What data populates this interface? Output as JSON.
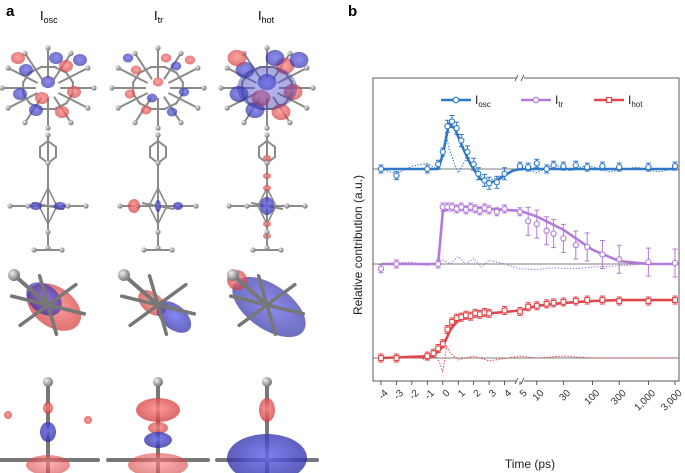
{
  "panel_a": {
    "letter": "a",
    "columns": [
      {
        "base": "I",
        "sub": "osc"
      },
      {
        "base": "I",
        "sub": "tr"
      },
      {
        "base": "I",
        "sub": "hot"
      }
    ]
  },
  "panel_b": {
    "letter": "b"
  },
  "colors": {
    "osc": "#2f78c8",
    "tr": "#b27ad9",
    "hot": "#e0474c",
    "blue_density": "#4a4ad0",
    "red_density": "#e85a5a",
    "atom": "#9a9a9a"
  },
  "chart_data": {
    "type": "line",
    "ylabel": "Relative contribution (a.u.)",
    "xlabel": "Time (ps)",
    "x_scale": "piecewise: linear -4 to 5 ps, then log 5 to 3,000 ps, with axis break after 5",
    "xlim": [
      -4,
      3000
    ],
    "x_ticks": [
      "-4",
      "-3",
      "-2",
      "-1",
      "0",
      "1",
      "2",
      "3",
      "4",
      "5",
      "10",
      "30",
      "100",
      "300",
      "1,000",
      "3,000"
    ],
    "grid": false,
    "legend_position": "top",
    "series": [
      {
        "name_base": "I",
        "name_sub": "osc",
        "key": "osc",
        "offset": 2,
        "points": [
          [
            -4,
            0.0
          ],
          [
            -3,
            -0.07
          ],
          [
            -1,
            0.0
          ],
          [
            -0.3,
            0.05
          ],
          [
            0,
            0.18
          ],
          [
            0.3,
            0.45
          ],
          [
            0.6,
            0.5
          ],
          [
            0.9,
            0.43
          ],
          [
            1.2,
            0.3
          ],
          [
            1.6,
            0.18
          ],
          [
            2.0,
            0.05
          ],
          [
            2.3,
            -0.05
          ],
          [
            2.7,
            -0.12
          ],
          [
            3.0,
            -0.15
          ],
          [
            3.5,
            -0.14
          ],
          [
            4.0,
            -0.05
          ],
          [
            5,
            0.03
          ],
          [
            7,
            0.02
          ],
          [
            10,
            0.06
          ],
          [
            15,
            0.0
          ],
          [
            20,
            0.04
          ],
          [
            30,
            0.03
          ],
          [
            50,
            0.04
          ],
          [
            80,
            0.02
          ],
          [
            150,
            0.03
          ],
          [
            300,
            0.02
          ],
          [
            1000,
            0.02
          ],
          [
            3000,
            0.03
          ]
        ],
        "fit": [
          [
            -4,
            0.0
          ],
          [
            -0.3,
            0.0
          ],
          [
            0,
            0.15
          ],
          [
            0.4,
            0.48
          ],
          [
            0.8,
            0.42
          ],
          [
            1.3,
            0.22
          ],
          [
            1.8,
            0.05
          ],
          [
            2.4,
            -0.1
          ],
          [
            3.0,
            -0.15
          ],
          [
            3.6,
            -0.11
          ],
          [
            4.5,
            -0.02
          ],
          [
            5,
            0.0
          ],
          [
            3000,
            0.0
          ]
        ],
        "dotted": [
          [
            -4,
            0.0
          ],
          [
            -3,
            -0.05
          ],
          [
            -2,
            0.03
          ],
          [
            -1,
            0.06
          ],
          [
            -0.4,
            0.0
          ],
          [
            0,
            0.12
          ],
          [
            0.2,
            0.38
          ],
          [
            0.4,
            0.22
          ],
          [
            0.7,
            0.08
          ],
          [
            1,
            -0.04
          ],
          [
            1.5,
            0.1
          ],
          [
            2,
            0.02
          ],
          [
            2.5,
            -0.08
          ],
          [
            3,
            -0.12
          ],
          [
            4,
            -0.06
          ],
          [
            5,
            0.02
          ],
          [
            10,
            -0.04
          ],
          [
            20,
            0.05
          ],
          [
            40,
            -0.02
          ],
          [
            80,
            0.04
          ],
          [
            200,
            -0.03
          ],
          [
            600,
            0.02
          ],
          [
            1500,
            -0.03
          ],
          [
            3000,
            0.0
          ]
        ]
      },
      {
        "name_base": "I",
        "name_sub": "tr",
        "key": "tr",
        "offset": 1,
        "points": [
          [
            -4,
            -0.05
          ],
          [
            -3,
            0.0
          ],
          [
            -0.3,
            0.0
          ],
          [
            0,
            0.6
          ],
          [
            0.3,
            0.6
          ],
          [
            0.6,
            0.6
          ],
          [
            0.9,
            0.58
          ],
          [
            1.2,
            0.6
          ],
          [
            1.5,
            0.57
          ],
          [
            1.8,
            0.6
          ],
          [
            2.1,
            0.58
          ],
          [
            2.4,
            0.56
          ],
          [
            2.7,
            0.59
          ],
          [
            3.0,
            0.57
          ],
          [
            3.5,
            0.55
          ],
          [
            4.0,
            0.58
          ],
          [
            5,
            0.55
          ],
          [
            7,
            0.45
          ],
          [
            10,
            0.42
          ],
          [
            15,
            0.35
          ],
          [
            20,
            0.32
          ],
          [
            30,
            0.27
          ],
          [
            50,
            0.2
          ],
          [
            80,
            0.18
          ],
          [
            150,
            0.1
          ],
          [
            300,
            0.05
          ],
          [
            1000,
            0.02
          ],
          [
            3000,
            0.01
          ]
        ],
        "fit": [
          [
            -4,
            0.0
          ],
          [
            -0.3,
            0.0
          ],
          [
            0,
            0.55
          ],
          [
            0.5,
            0.6
          ],
          [
            2,
            0.59
          ],
          [
            5,
            0.56
          ],
          [
            10,
            0.5
          ],
          [
            30,
            0.36
          ],
          [
            100,
            0.15
          ],
          [
            300,
            0.03
          ],
          [
            1000,
            0.0
          ],
          [
            3000,
            0.0
          ]
        ],
        "dotted": [
          [
            -4,
            0.0
          ],
          [
            -2,
            0.02
          ],
          [
            -1,
            -0.02
          ],
          [
            0,
            0.04
          ],
          [
            0.5,
            0.0
          ],
          [
            1,
            0.08
          ],
          [
            1.5,
            0.0
          ],
          [
            2,
            0.06
          ],
          [
            2.5,
            -0.03
          ],
          [
            3,
            0.04
          ],
          [
            4,
            0.0
          ],
          [
            5,
            -0.05
          ],
          [
            10,
            -0.06
          ],
          [
            20,
            -0.04
          ],
          [
            50,
            -0.05
          ],
          [
            100,
            -0.03
          ],
          [
            300,
            -0.02
          ],
          [
            1000,
            0.0
          ],
          [
            3000,
            0.0
          ]
        ]
      },
      {
        "name_base": "I",
        "name_sub": "hot",
        "key": "hot",
        "offset": 0,
        "points": [
          [
            -4,
            0.0
          ],
          [
            -3,
            0.0
          ],
          [
            -1,
            0.02
          ],
          [
            -0.6,
            0.05
          ],
          [
            -0.3,
            0.1
          ],
          [
            0,
            0.15
          ],
          [
            0.3,
            0.3
          ],
          [
            0.6,
            0.38
          ],
          [
            0.9,
            0.42
          ],
          [
            1.2,
            0.43
          ],
          [
            1.5,
            0.45
          ],
          [
            1.8,
            0.44
          ],
          [
            2.1,
            0.47
          ],
          [
            2.4,
            0.46
          ],
          [
            2.7,
            0.48
          ],
          [
            3.0,
            0.47
          ],
          [
            4.0,
            0.5
          ],
          [
            5,
            0.49
          ],
          [
            7,
            0.54
          ],
          [
            10,
            0.55
          ],
          [
            15,
            0.57
          ],
          [
            20,
            0.58
          ],
          [
            30,
            0.59
          ],
          [
            50,
            0.6
          ],
          [
            80,
            0.61
          ],
          [
            150,
            0.61
          ],
          [
            300,
            0.6
          ],
          [
            1000,
            0.6
          ],
          [
            3000,
            0.61
          ]
        ],
        "fit": [
          [
            -4,
            0.0
          ],
          [
            -0.6,
            0.02
          ],
          [
            0,
            0.12
          ],
          [
            0.5,
            0.3
          ],
          [
            1,
            0.4
          ],
          [
            2,
            0.45
          ],
          [
            3,
            0.47
          ],
          [
            5,
            0.5
          ],
          [
            10,
            0.55
          ],
          [
            30,
            0.58
          ],
          [
            100,
            0.6
          ],
          [
            300,
            0.61
          ],
          [
            1000,
            0.61
          ],
          [
            3000,
            0.61
          ]
        ],
        "dotted": [
          [
            -4,
            0.0
          ],
          [
            -2,
            0.02
          ],
          [
            -1,
            -0.02
          ],
          [
            -0.5,
            0.04
          ],
          [
            -0.2,
            -0.05
          ],
          [
            0,
            -0.15
          ],
          [
            0.25,
            0.12
          ],
          [
            0.5,
            0.05
          ],
          [
            1,
            -0.02
          ],
          [
            2,
            0.02
          ],
          [
            3,
            -0.03
          ],
          [
            5,
            0.02
          ],
          [
            10,
            0.0
          ],
          [
            30,
            0.02
          ],
          [
            100,
            0.0
          ],
          [
            300,
            0.0
          ],
          [
            1000,
            0.0
          ],
          [
            3000,
            0.0
          ]
        ]
      }
    ]
  }
}
